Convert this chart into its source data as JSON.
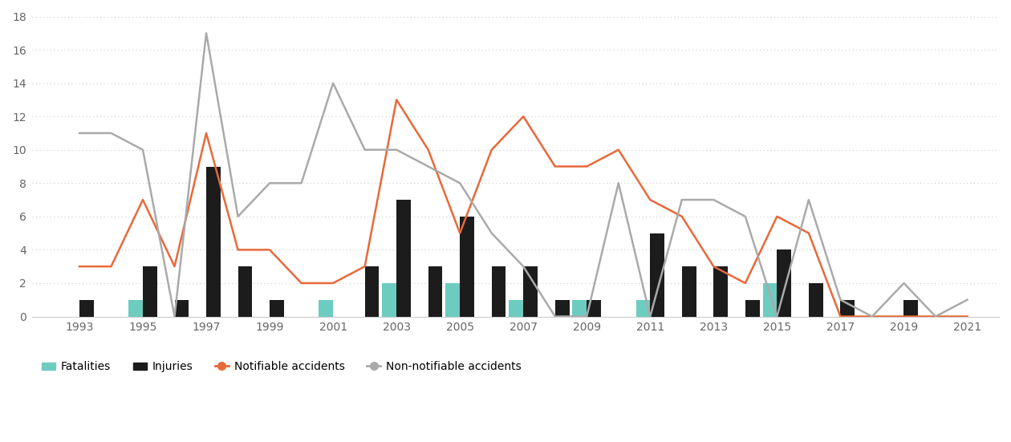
{
  "years": [
    1993,
    1994,
    1995,
    1996,
    1997,
    1998,
    1999,
    2000,
    2001,
    2002,
    2003,
    2004,
    2005,
    2006,
    2007,
    2008,
    2009,
    2010,
    2011,
    2012,
    2013,
    2014,
    2015,
    2016,
    2017,
    2018,
    2019,
    2020,
    2021
  ],
  "fatalities": [
    0,
    0,
    1,
    0,
    0,
    0,
    0,
    0,
    1,
    0,
    2,
    0,
    2,
    0,
    1,
    0,
    1,
    0,
    1,
    0,
    0,
    0,
    2,
    0,
    0,
    0,
    0,
    0,
    0
  ],
  "injuries": [
    1,
    0,
    3,
    1,
    9,
    3,
    1,
    0,
    0,
    3,
    7,
    3,
    6,
    3,
    3,
    1,
    1,
    0,
    5,
    3,
    3,
    1,
    4,
    2,
    1,
    0,
    1,
    0,
    0
  ],
  "notifiable": [
    3,
    3,
    7,
    3,
    11,
    4,
    4,
    2,
    2,
    3,
    13,
    10,
    5,
    10,
    12,
    9,
    9,
    10,
    7,
    6,
    3,
    2,
    6,
    5,
    0,
    0,
    0,
    0,
    0
  ],
  "non_notifiable": [
    11,
    11,
    10,
    0,
    17,
    6,
    8,
    8,
    14,
    10,
    10,
    9,
    8,
    5,
    3,
    0,
    0,
    8,
    0,
    7,
    7,
    6,
    0,
    7,
    1,
    0,
    2,
    0,
    1
  ],
  "fatalities_color": "#6dccc0",
  "injuries_color": "#1c1c1c",
  "notifiable_color": "#e8693a",
  "non_notifiable_color": "#aaaaaa",
  "background_color": "#ffffff",
  "ylim": [
    0,
    18
  ],
  "yticks": [
    0,
    2,
    4,
    6,
    8,
    10,
    12,
    14,
    16,
    18
  ],
  "xtick_years": [
    1993,
    1995,
    1997,
    1999,
    2001,
    2003,
    2005,
    2007,
    2009,
    2011,
    2013,
    2015,
    2017,
    2019,
    2021
  ]
}
